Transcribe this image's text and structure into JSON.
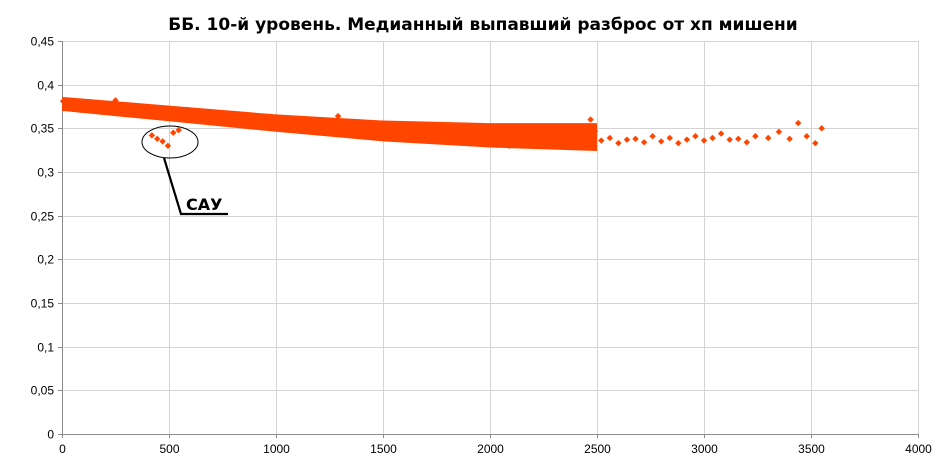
{
  "chart_data": {
    "type": "scatter",
    "title": "ББ. 10-й уровень. Медианный выпавший разброс от хп мишени",
    "xlabel": "",
    "ylabel": "",
    "xlim": [
      0,
      4000
    ],
    "ylim": [
      0,
      0.45
    ],
    "x_ticks": [
      0,
      500,
      1000,
      1500,
      2000,
      2500,
      3000,
      3500,
      4000
    ],
    "x_tick_labels": [
      "0",
      "500",
      "1000",
      "1500",
      "2000",
      "2500",
      "3000",
      "3500",
      "4000"
    ],
    "y_ticks": [
      0,
      0.05,
      0.1,
      0.15,
      0.2,
      0.25,
      0.3,
      0.35,
      0.4,
      0.45
    ],
    "y_tick_labels": [
      "0",
      "0,05",
      "0,1",
      "0,15",
      "0,2",
      "0,25",
      "0,3",
      "0,35",
      "0,4",
      "0,45"
    ],
    "grid": true,
    "legend": "none",
    "marker_color": "#FF4500",
    "series": [
      {
        "marker": "diamond",
        "points": [
          [
            5,
            0.381
          ],
          [
            15,
            0.377
          ],
          [
            25,
            0.375
          ],
          [
            40,
            0.379
          ],
          [
            55,
            0.374
          ],
          [
            70,
            0.378
          ],
          [
            85,
            0.371
          ],
          [
            100,
            0.376
          ],
          [
            115,
            0.373
          ],
          [
            130,
            0.38
          ],
          [
            150,
            0.372
          ],
          [
            170,
            0.377
          ],
          [
            190,
            0.371
          ],
          [
            210,
            0.375
          ],
          [
            230,
            0.369
          ],
          [
            250,
            0.382
          ],
          [
            270,
            0.373
          ],
          [
            290,
            0.368
          ],
          [
            310,
            0.376
          ],
          [
            330,
            0.371
          ],
          [
            350,
            0.367
          ],
          [
            370,
            0.374
          ],
          [
            390,
            0.369
          ],
          [
            410,
            0.372
          ],
          [
            430,
            0.366
          ],
          [
            450,
            0.371
          ],
          [
            470,
            0.364
          ],
          [
            490,
            0.37
          ],
          [
            510,
            0.366
          ],
          [
            530,
            0.362
          ],
          [
            550,
            0.369
          ],
          [
            570,
            0.364
          ],
          [
            590,
            0.371
          ],
          [
            610,
            0.361
          ],
          [
            630,
            0.366
          ],
          [
            650,
            0.362
          ],
          [
            670,
            0.368
          ],
          [
            690,
            0.36
          ],
          [
            710,
            0.365
          ],
          [
            730,
            0.359
          ],
          [
            750,
            0.363
          ],
          [
            770,
            0.358
          ],
          [
            790,
            0.364
          ],
          [
            810,
            0.357
          ],
          [
            830,
            0.362
          ],
          [
            850,
            0.356
          ],
          [
            870,
            0.361
          ],
          [
            890,
            0.355
          ],
          [
            910,
            0.36
          ],
          [
            930,
            0.354
          ],
          [
            950,
            0.359
          ],
          [
            970,
            0.353
          ],
          [
            990,
            0.358
          ],
          [
            1010,
            0.352
          ],
          [
            1030,
            0.36
          ],
          [
            1050,
            0.354
          ],
          [
            1070,
            0.349
          ],
          [
            1090,
            0.357
          ],
          [
            1110,
            0.352
          ],
          [
            1130,
            0.347
          ],
          [
            1150,
            0.355
          ],
          [
            1170,
            0.35
          ],
          [
            1190,
            0.357
          ],
          [
            1210,
            0.349
          ],
          [
            1230,
            0.354
          ],
          [
            1250,
            0.346
          ],
          [
            1270,
            0.352
          ],
          [
            1290,
            0.364
          ],
          [
            1310,
            0.348
          ],
          [
            1330,
            0.353
          ],
          [
            1350,
            0.345
          ],
          [
            1370,
            0.351
          ],
          [
            1390,
            0.344
          ],
          [
            1410,
            0.35
          ],
          [
            1430,
            0.343
          ],
          [
            1450,
            0.349
          ],
          [
            1470,
            0.342
          ],
          [
            1490,
            0.348
          ],
          [
            1510,
            0.341
          ],
          [
            1530,
            0.347
          ],
          [
            1550,
            0.34
          ],
          [
            1570,
            0.346
          ],
          [
            1590,
            0.352
          ],
          [
            1610,
            0.339
          ],
          [
            1630,
            0.345
          ],
          [
            1650,
            0.351
          ],
          [
            1670,
            0.338
          ],
          [
            1690,
            0.344
          ],
          [
            1710,
            0.35
          ],
          [
            1730,
            0.337
          ],
          [
            1750,
            0.343
          ],
          [
            1770,
            0.349
          ],
          [
            1790,
            0.336
          ],
          [
            1810,
            0.342
          ],
          [
            1830,
            0.348
          ],
          [
            1850,
            0.334
          ],
          [
            1870,
            0.341
          ],
          [
            1890,
            0.347
          ],
          [
            1910,
            0.333
          ],
          [
            1930,
            0.34
          ],
          [
            1950,
            0.346
          ],
          [
            1970,
            0.332
          ],
          [
            1990,
            0.339
          ],
          [
            2010,
            0.345
          ],
          [
            2030,
            0.331
          ],
          [
            2050,
            0.338
          ],
          [
            2070,
            0.344
          ],
          [
            2090,
            0.33
          ],
          [
            2110,
            0.337
          ],
          [
            2130,
            0.343
          ],
          [
            2150,
            0.351
          ],
          [
            2170,
            0.336
          ],
          [
            2190,
            0.342
          ],
          [
            2210,
            0.35
          ],
          [
            2230,
            0.334
          ],
          [
            2250,
            0.341
          ],
          [
            2270,
            0.349
          ],
          [
            2290,
            0.333
          ],
          [
            2310,
            0.34
          ],
          [
            2330,
            0.348
          ],
          [
            2350,
            0.332
          ],
          [
            2370,
            0.339
          ],
          [
            2390,
            0.347
          ],
          [
            2410,
            0.328
          ],
          [
            2430,
            0.345
          ],
          [
            2450,
            0.338
          ],
          [
            2470,
            0.36
          ],
          [
            2480,
            0.333
          ],
          [
            2490,
            0.347
          ],
          [
            2520,
            0.336
          ],
          [
            2560,
            0.339
          ],
          [
            2600,
            0.333
          ],
          [
            2640,
            0.337
          ],
          [
            2680,
            0.338
          ],
          [
            2720,
            0.334
          ],
          [
            2760,
            0.341
          ],
          [
            2800,
            0.335
          ],
          [
            2840,
            0.339
          ],
          [
            2880,
            0.333
          ],
          [
            2920,
            0.337
          ],
          [
            2960,
            0.341
          ],
          [
            3000,
            0.336
          ],
          [
            3040,
            0.339
          ],
          [
            3080,
            0.344
          ],
          [
            3120,
            0.337
          ],
          [
            3160,
            0.338
          ],
          [
            3200,
            0.334
          ],
          [
            3240,
            0.341
          ],
          [
            3300,
            0.339
          ],
          [
            3350,
            0.346
          ],
          [
            3400,
            0.338
          ],
          [
            3440,
            0.356
          ],
          [
            3480,
            0.341
          ],
          [
            3520,
            0.333
          ],
          [
            3550,
            0.35
          ],
          [
            420,
            0.342
          ],
          [
            445,
            0.338
          ],
          [
            470,
            0.335
          ],
          [
            495,
            0.33
          ],
          [
            520,
            0.345
          ],
          [
            545,
            0.348
          ]
        ],
        "trend": [
          [
            0,
            0.378
          ],
          [
            500,
            0.367
          ],
          [
            1000,
            0.356
          ],
          [
            1500,
            0.347
          ],
          [
            2000,
            0.342
          ],
          [
            2500,
            0.34
          ]
        ],
        "spread": [
          [
            0,
            0.008
          ],
          [
            500,
            0.009
          ],
          [
            1000,
            0.01
          ],
          [
            1500,
            0.012
          ],
          [
            2000,
            0.014
          ],
          [
            2500,
            0.016
          ]
        ]
      }
    ]
  },
  "annotation": {
    "label": "САУ"
  }
}
